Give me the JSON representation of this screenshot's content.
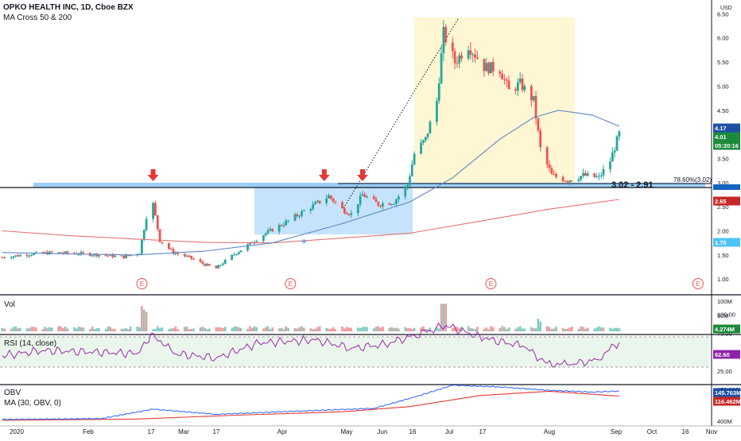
{
  "header": {
    "symbol": "OPKO HEALTH INC, 1D, Cboe BZX",
    "indicator": "MA Cross 50 & 200",
    "currency": "USD"
  },
  "panes": {
    "volume_title": "Vol",
    "rsi_title": "RSI (14, close)",
    "obv_title": "OBV",
    "obv_ma_title": "MA (30, OBV, 0)"
  },
  "annotations": {
    "zone_label": "3.02 - 2.91",
    "fib_label": "78.60%(3.02)",
    "earnings_marker": "E"
  },
  "badges": {
    "ma50": "4.17",
    "last": "4.01",
    "countdown": "05:20:16",
    "ma200": "2.65",
    "support": "1.75",
    "volume": "4.274M",
    "rsi": "62.60",
    "obv": "145.763M",
    "obv_ma": "116.462M"
  },
  "colors": {
    "up": "#26a69a",
    "down": "#ef5350",
    "ma50": "#5b87c5",
    "ma200": "#e57373",
    "rsi_line": "#9c27b0",
    "obv_line": "#2962ff",
    "obv_ma_line": "#e53935",
    "zone": "#90caf9",
    "resistance": "#1565c0",
    "projection": "#fff3c4"
  },
  "icons": {
    "arrows": "down-arrow-icon",
    "earnings": "earnings-icon"
  },
  "chart_data": [
    {
      "type": "candlestick",
      "title": "OPKO HEALTH INC, 1D, Cboe BZX",
      "x_ticks": [
        "2020",
        "Feb",
        "17",
        "Mar",
        "17",
        "Apr",
        "May",
        "Jun",
        "16",
        "Jul",
        "17",
        "Aug",
        "Sep",
        "Oct",
        "16",
        "Nov"
      ],
      "y_ticks": [
        "1.00",
        "1.50",
        "2.00",
        "2.50",
        "3.00",
        "3.50",
        "4.00",
        "4.50",
        "5.00",
        "5.50",
        "6.00",
        "6.50"
      ],
      "ylim": [
        0.8,
        6.7
      ],
      "x_domain": [
        "2020-01-01",
        "2020-11-08"
      ],
      "close_series": [
        {
          "date": "2020-01-02",
          "close": 1.45
        },
        {
          "date": "2020-01-15",
          "close": 1.52
        },
        {
          "date": "2020-01-25",
          "close": 1.55
        },
        {
          "date": "2020-02-05",
          "close": 1.53
        },
        {
          "date": "2020-02-15",
          "close": 1.5
        },
        {
          "date": "2020-02-25",
          "close": 1.46
        },
        {
          "date": "2020-03-03",
          "close": 1.55
        },
        {
          "date": "2020-03-06",
          "close": 2.3
        },
        {
          "date": "2020-03-09",
          "close": 2.55
        },
        {
          "date": "2020-03-12",
          "close": 1.8
        },
        {
          "date": "2020-03-18",
          "close": 1.55
        },
        {
          "date": "2020-03-25",
          "close": 1.45
        },
        {
          "date": "2020-04-01",
          "close": 1.3
        },
        {
          "date": "2020-04-06",
          "close": 1.22
        },
        {
          "date": "2020-04-12",
          "close": 1.45
        },
        {
          "date": "2020-04-20",
          "close": 1.7
        },
        {
          "date": "2020-04-28",
          "close": 1.95
        },
        {
          "date": "2020-05-06",
          "close": 2.15
        },
        {
          "date": "2020-05-13",
          "close": 2.35
        },
        {
          "date": "2020-05-20",
          "close": 2.55
        },
        {
          "date": "2020-05-26",
          "close": 2.72
        },
        {
          "date": "2020-06-01",
          "close": 2.45
        },
        {
          "date": "2020-06-05",
          "close": 2.35
        },
        {
          "date": "2020-06-10",
          "close": 2.75
        },
        {
          "date": "2020-06-17",
          "close": 2.55
        },
        {
          "date": "2020-06-24",
          "close": 2.6
        },
        {
          "date": "2020-06-30",
          "close": 2.95
        },
        {
          "date": "2020-07-03",
          "close": 3.6
        },
        {
          "date": "2020-07-08",
          "close": 3.9
        },
        {
          "date": "2020-07-13",
          "close": 4.7
        },
        {
          "date": "2020-07-16",
          "close": 6.1
        },
        {
          "date": "2020-07-21",
          "close": 5.5
        },
        {
          "date": "2020-07-27",
          "close": 5.85
        },
        {
          "date": "2020-08-03",
          "close": 5.4
        },
        {
          "date": "2020-08-10",
          "close": 5.35
        },
        {
          "date": "2020-08-14",
          "close": 4.9
        },
        {
          "date": "2020-08-19",
          "close": 5.05
        },
        {
          "date": "2020-08-25",
          "close": 4.7
        },
        {
          "date": "2020-08-28",
          "close": 3.7
        },
        {
          "date": "2020-09-02",
          "close": 3.15
        },
        {
          "date": "2020-09-09",
          "close": 3.05
        },
        {
          "date": "2020-09-16",
          "close": 3.15
        },
        {
          "date": "2020-09-23",
          "close": 3.1
        },
        {
          "date": "2020-09-28",
          "close": 3.45
        },
        {
          "date": "2020-10-02",
          "close": 4.01
        }
      ],
      "ma50": [
        {
          "date": "2020-01-02",
          "value": 1.55
        },
        {
          "date": "2020-02-01",
          "value": 1.52
        },
        {
          "date": "2020-03-01",
          "value": 1.5
        },
        {
          "date": "2020-04-01",
          "value": 1.58
        },
        {
          "date": "2020-05-01",
          "value": 1.75
        },
        {
          "date": "2020-06-01",
          "value": 2.15
        },
        {
          "date": "2020-07-01",
          "value": 2.6
        },
        {
          "date": "2020-07-20",
          "value": 3.1
        },
        {
          "date": "2020-08-10",
          "value": 3.9
        },
        {
          "date": "2020-08-25",
          "value": 4.35
        },
        {
          "date": "2020-09-05",
          "value": 4.5
        },
        {
          "date": "2020-09-20",
          "value": 4.4
        },
        {
          "date": "2020-10-02",
          "value": 4.17
        }
      ],
      "ma200": [
        {
          "date": "2020-01-02",
          "value": 2.0
        },
        {
          "date": "2020-02-01",
          "value": 1.9
        },
        {
          "date": "2020-03-01",
          "value": 1.83
        },
        {
          "date": "2020-04-01",
          "value": 1.76
        },
        {
          "date": "2020-05-01",
          "value": 1.75
        },
        {
          "date": "2020-06-01",
          "value": 1.85
        },
        {
          "date": "2020-07-01",
          "value": 1.95
        },
        {
          "date": "2020-08-01",
          "value": 2.2
        },
        {
          "date": "2020-09-01",
          "value": 2.45
        },
        {
          "date": "2020-10-02",
          "value": 2.65
        }
      ],
      "resistance": 2.91,
      "zone": [
        2.91,
        3.02
      ],
      "fib_level": 3.02,
      "down_arrows": [
        "2020-03-09",
        "2020-05-24",
        "2020-06-10"
      ],
      "earnings": [
        "2020-03-04",
        "2020-05-09",
        "2020-08-06",
        "2020-11-06"
      ]
    },
    {
      "type": "bar",
      "title": "Vol",
      "y_ticks": [
        "50M",
        "100M"
      ],
      "ylim": [
        0,
        120
      ],
      "unit": "M",
      "last_value": 4.274
    },
    {
      "type": "line",
      "title": "RSI (14, close)",
      "y_ticks": [
        "25.00",
        "50.00",
        "75.00",
        "100.00"
      ],
      "ylim": [
        15,
        105
      ],
      "band": [
        30,
        70
      ],
      "series": [
        {
          "name": "RSI",
          "points": [
            {
              "date": "2020-01-02",
              "value": 45
            },
            {
              "date": "2020-01-20",
              "value": 52
            },
            {
              "date": "2020-02-10",
              "value": 50
            },
            {
              "date": "2020-03-02",
              "value": 48
            },
            {
              "date": "2020-03-09",
              "value": 75
            },
            {
              "date": "2020-03-18",
              "value": 48
            },
            {
              "date": "2020-04-06",
              "value": 42
            },
            {
              "date": "2020-04-25",
              "value": 62
            },
            {
              "date": "2020-05-20",
              "value": 66
            },
            {
              "date": "2020-06-05",
              "value": 55
            },
            {
              "date": "2020-06-20",
              "value": 60
            },
            {
              "date": "2020-07-03",
              "value": 72
            },
            {
              "date": "2020-07-17",
              "value": 85
            },
            {
              "date": "2020-08-03",
              "value": 68
            },
            {
              "date": "2020-08-20",
              "value": 58
            },
            {
              "date": "2020-08-31",
              "value": 35
            },
            {
              "date": "2020-09-10",
              "value": 33
            },
            {
              "date": "2020-09-22",
              "value": 40
            },
            {
              "date": "2020-10-02",
              "value": 62.6
            }
          ]
        }
      ]
    },
    {
      "type": "line",
      "title": "OBV",
      "y_ticks": [
        "150.000M",
        "400M"
      ],
      "series": [
        {
          "name": "OBV",
          "points": [
            {
              "date": "2020-01-02",
              "value": -20
            },
            {
              "date": "2020-02-15",
              "value": -15
            },
            {
              "date": "2020-03-09",
              "value": 40
            },
            {
              "date": "2020-04-06",
              "value": 10
            },
            {
              "date": "2020-05-15",
              "value": 30
            },
            {
              "date": "2020-06-15",
              "value": 45
            },
            {
              "date": "2020-07-03",
              "value": 110
            },
            {
              "date": "2020-07-20",
              "value": 180
            },
            {
              "date": "2020-08-10",
              "value": 170
            },
            {
              "date": "2020-09-01",
              "value": 150
            },
            {
              "date": "2020-09-20",
              "value": 140
            },
            {
              "date": "2020-10-02",
              "value": 145.763
            }
          ]
        },
        {
          "name": "MA (30, OBV, 0)",
          "points": [
            {
              "date": "2020-01-02",
              "value": -25
            },
            {
              "date": "2020-03-01",
              "value": -18
            },
            {
              "date": "2020-04-15",
              "value": 5
            },
            {
              "date": "2020-06-01",
              "value": 25
            },
            {
              "date": "2020-07-01",
              "value": 55
            },
            {
              "date": "2020-08-01",
              "value": 120
            },
            {
              "date": "2020-09-01",
              "value": 145
            },
            {
              "date": "2020-10-02",
              "value": 116.462
            }
          ]
        }
      ]
    }
  ]
}
